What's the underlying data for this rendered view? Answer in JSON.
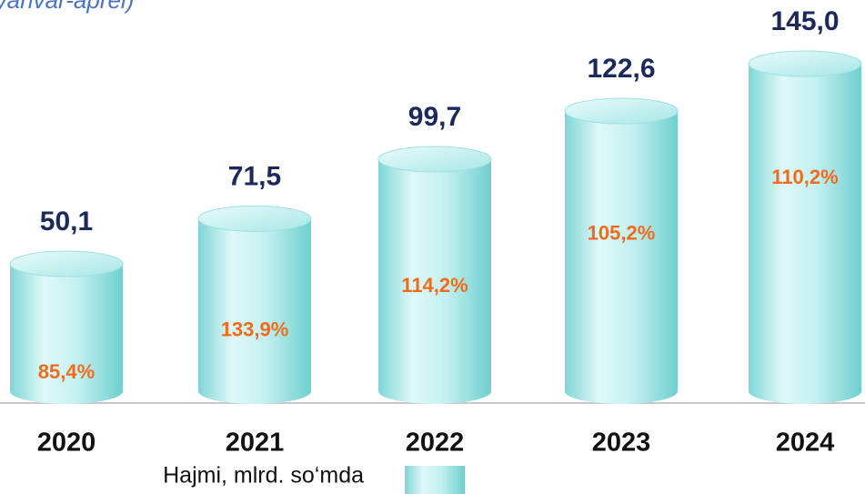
{
  "chart_data": {
    "type": "bar",
    "subtitle": "(yanvar-aprel)",
    "categories": [
      "2020",
      "2021",
      "2022",
      "2023",
      "2024"
    ],
    "series": [
      {
        "name": "Hajmi, mlrd. so‘mda",
        "color": "#b5eded",
        "values": [
          50.1,
          71.5,
          99.7,
          122.6,
          145.0
        ],
        "value_labels": [
          "50,1",
          "71,5",
          "99,7",
          "122,6",
          "145,0"
        ]
      }
    ],
    "growth": {
      "values": [
        85.4,
        133.9,
        114.2,
        105.2,
        110.2
      ],
      "value_labels": [
        "85,4%",
        "133,9%",
        "114,2%",
        "105,2%",
        "110,2%"
      ]
    }
  }
}
